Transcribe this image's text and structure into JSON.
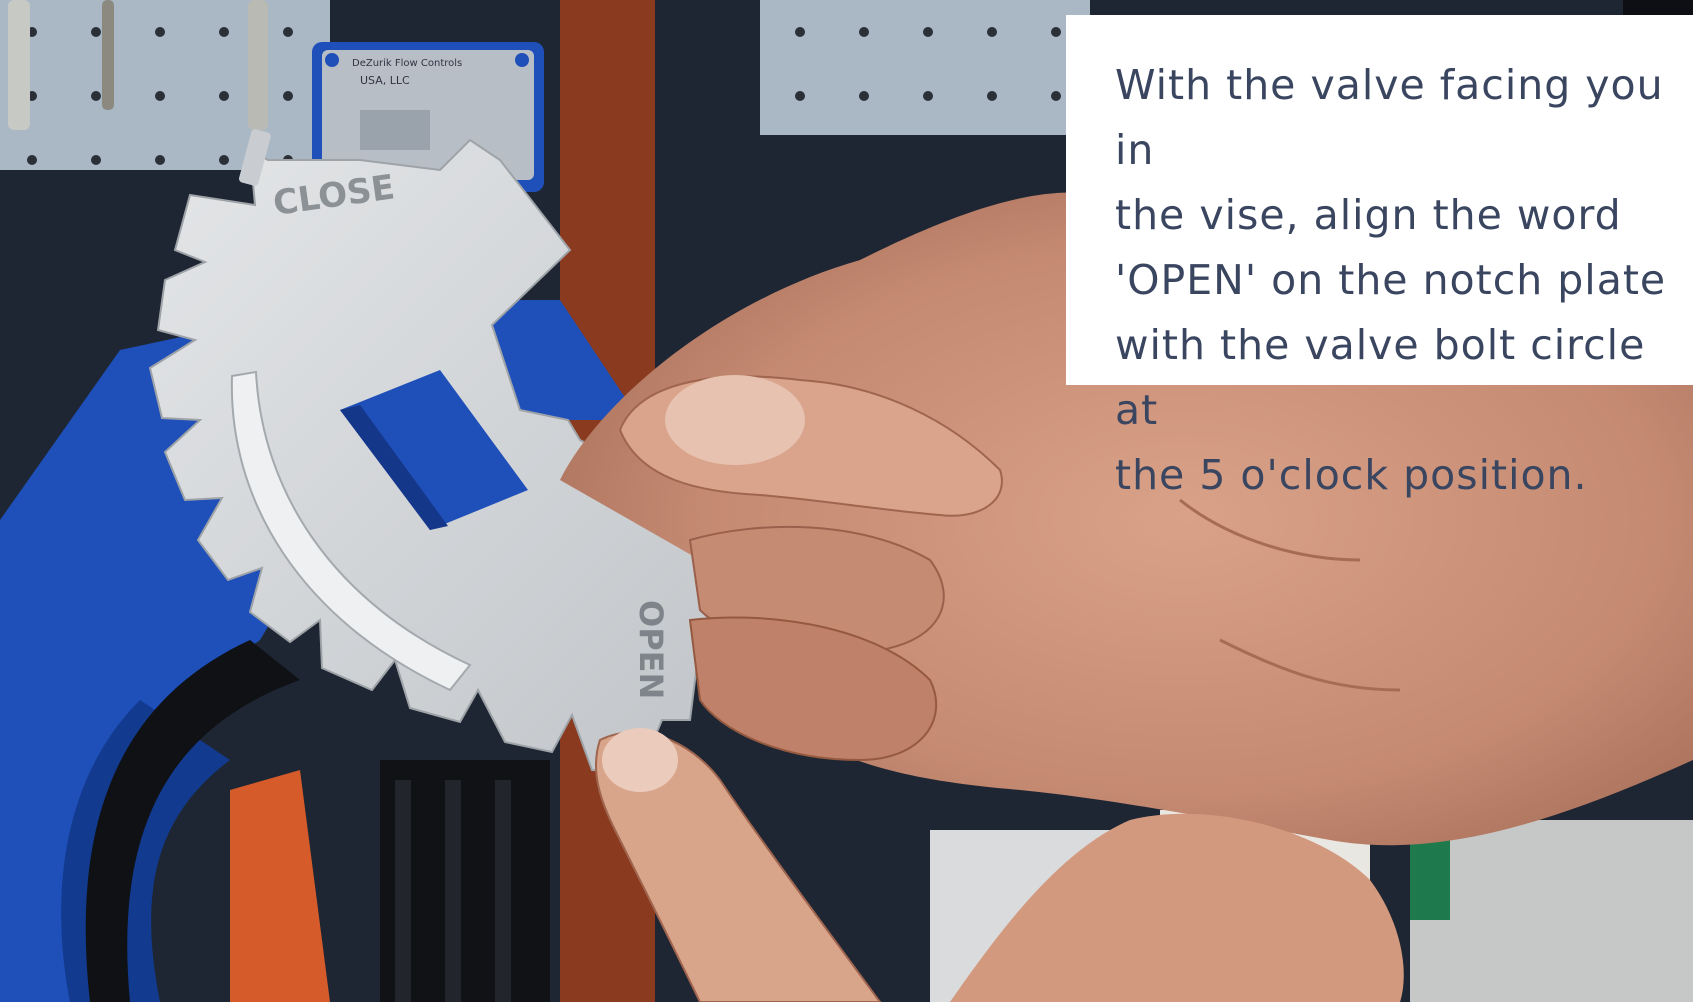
{
  "caption": {
    "lines": [
      "With the valve facing you in",
      "the vise, align the word",
      "'OPEN' on the notch plate",
      "with the valve bolt circle at",
      "the 5 o'clock position."
    ]
  },
  "plate_labels": {
    "close": "CLOSE",
    "open": "OPEN"
  },
  "badge": {
    "line1": "DeZurik Flow Controls",
    "line2": "USA, LLC"
  },
  "colors": {
    "pegboard": "#aab8c6",
    "valve_body": "#1f4fb8",
    "plate": "#d2d5d8",
    "skin": "#c98e76",
    "caption_text": "#3a4560",
    "caption_bg": "#ffffff"
  }
}
